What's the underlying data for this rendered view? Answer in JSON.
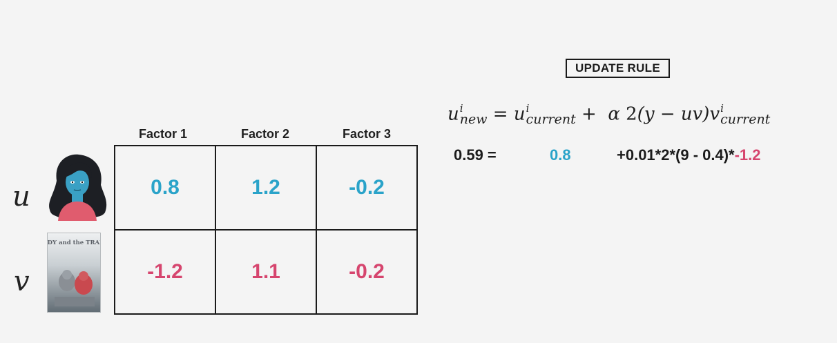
{
  "update_rule": {
    "label": "UPDATE RULE",
    "formula": {
      "lhs_base": "u",
      "lhs_sup": "i",
      "lhs_sub": "new",
      "equals": "=",
      "cur_base": "u",
      "cur_sup": "i",
      "cur_sub": "current",
      "plus": "+",
      "alpha": "α",
      "two": "2",
      "paren_expr": "(y − uv)",
      "v_base": "v",
      "v_sup": "i",
      "v_sub": "current"
    },
    "computation": {
      "result": "0.59 =",
      "u_current": "0.8",
      "expression": "+0.01*2*(9 - 0.4)*",
      "v_current": "-1.2"
    }
  },
  "matrix": {
    "headers": [
      "Factor 1",
      "Factor 2",
      "Factor 3"
    ],
    "rows": [
      {
        "symbol": "u",
        "values": [
          "0.8",
          "1.2",
          "-0.2"
        ]
      },
      {
        "symbol": "v",
        "values": [
          "-1.2",
          "1.1",
          "-0.2"
        ]
      }
    ]
  },
  "colors": {
    "u_values": "#2aa3c9",
    "v_values": "#d6456e",
    "avatar_skin": "#3aa0c4",
    "avatar_shirt": "#e05c6e"
  },
  "poster_title": "LADY and the TRAMP"
}
